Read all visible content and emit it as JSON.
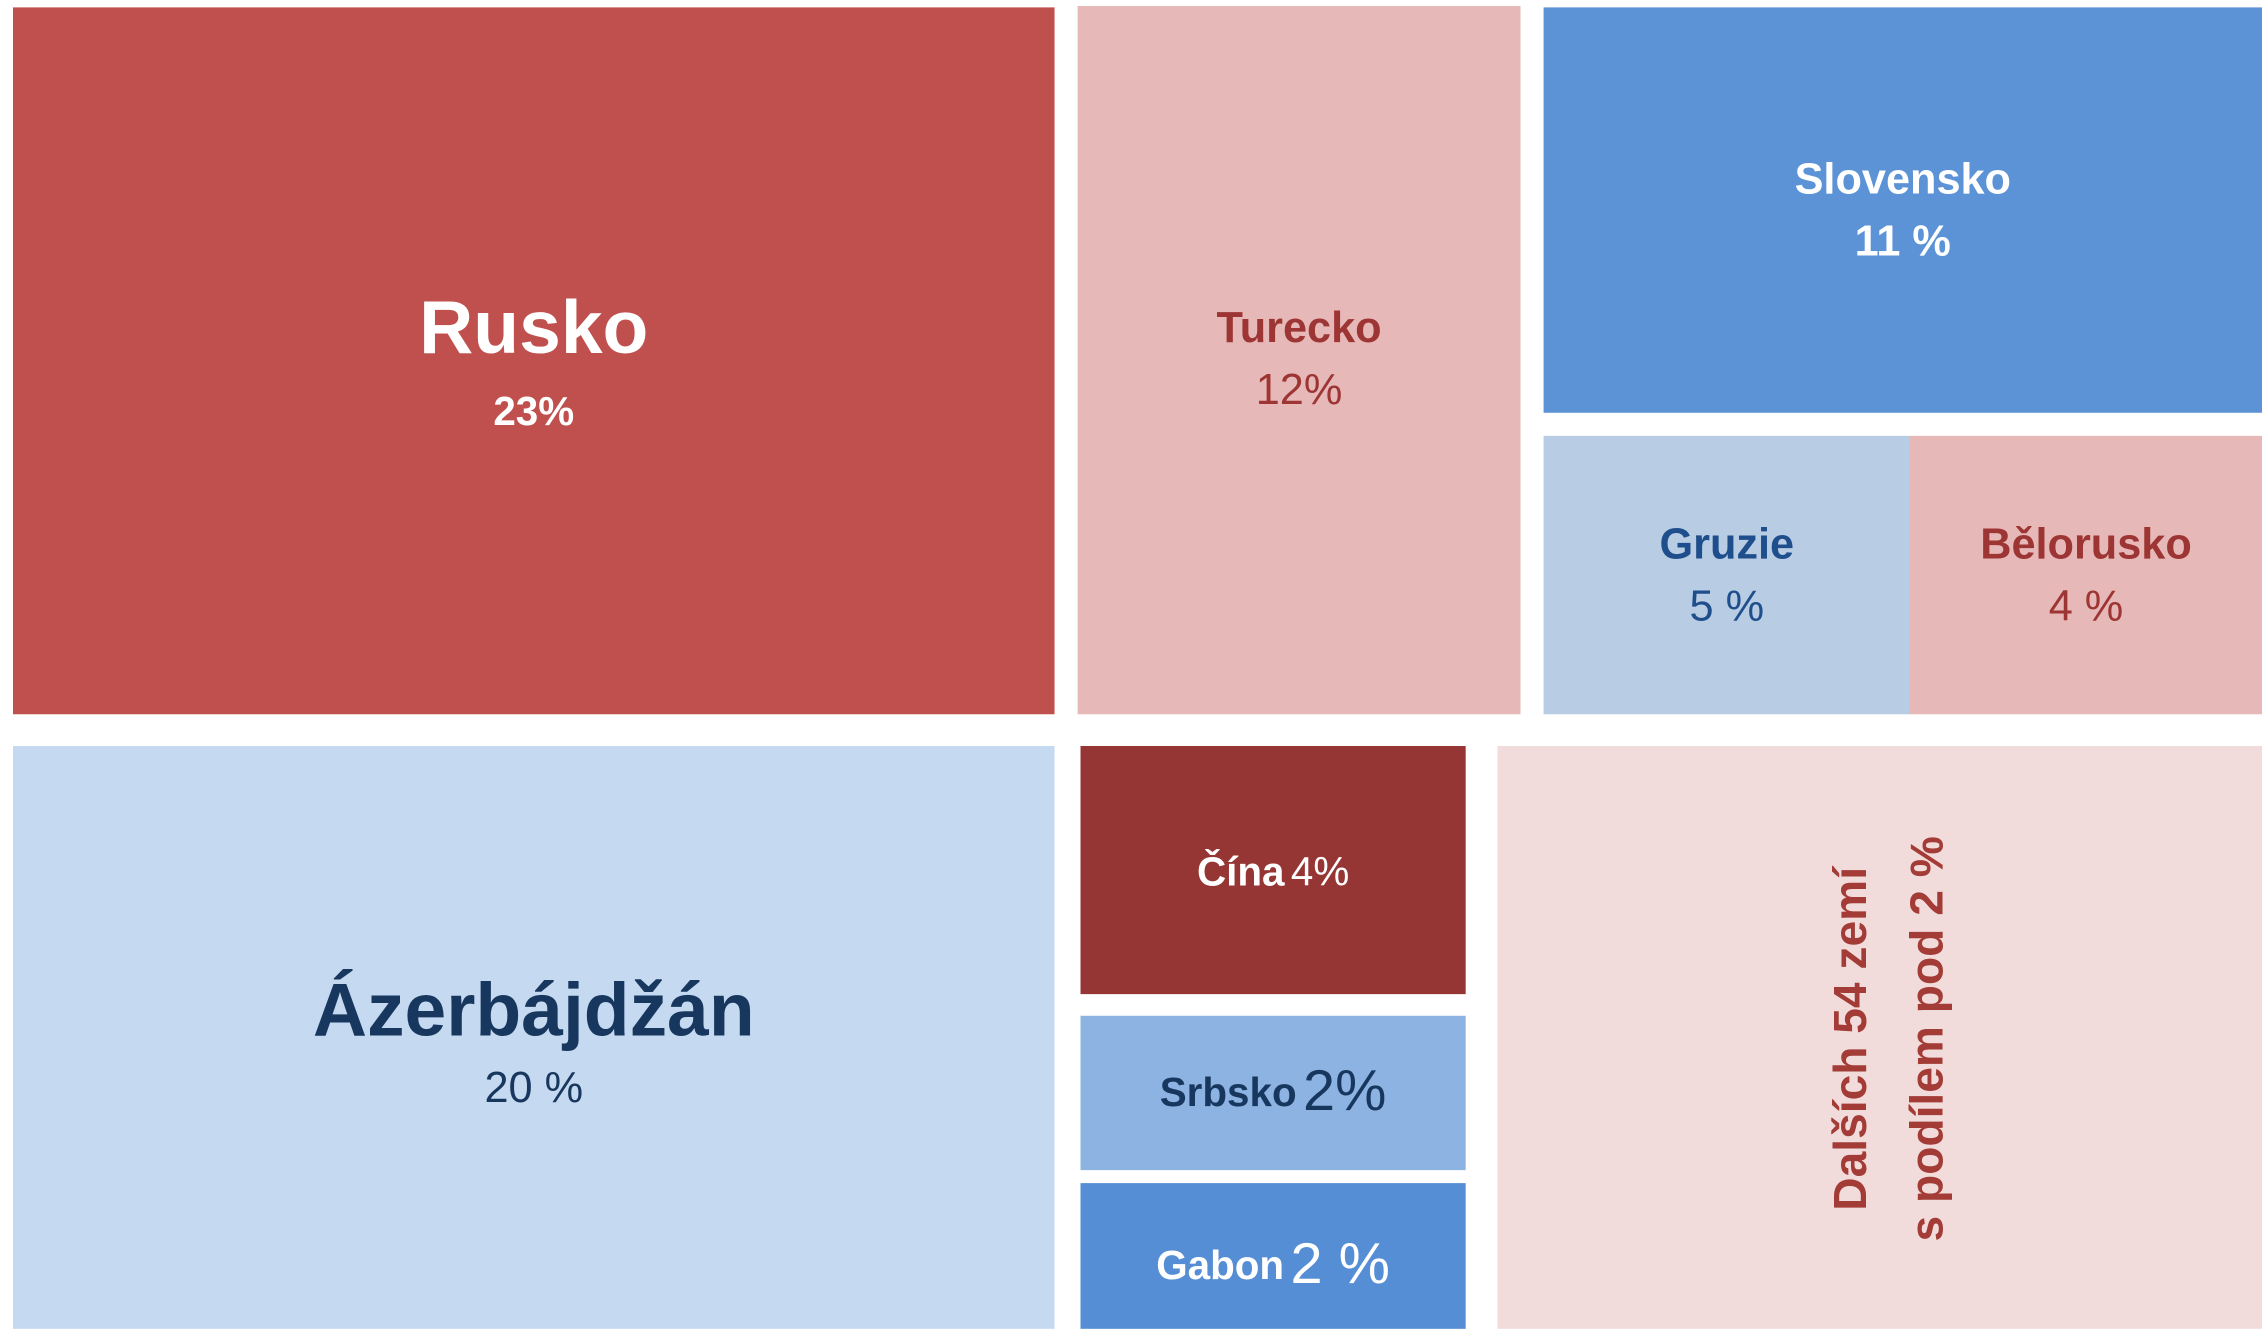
{
  "chart_data": {
    "type": "treemap",
    "categories": [
      "Rusko",
      "Turecko",
      "Slovensko",
      "Gruzie",
      "Bělorusko",
      "Ázerbájdžán",
      "Čína",
      "Srbsko",
      "Gabon"
    ],
    "values": [
      23,
      12,
      11,
      5,
      4,
      20,
      4,
      2,
      2
    ],
    "value_labels": [
      "23%",
      "12%",
      "11 %",
      "5 %",
      "4 %",
      "20 %",
      "4%",
      "2%",
      "2 %"
    ],
    "colors": [
      "#c0504d",
      "#e6b8b7",
      "#5b93d6",
      "#b8cce4",
      "#e6b8b7",
      "#c5d9f1",
      "#963634",
      "#8db3e2",
      "#558ed5"
    ],
    "others_label": [
      "Dalších 54  zemí",
      "s podílem pod 2 %"
    ],
    "others_color": "#f2dcdb"
  }
}
